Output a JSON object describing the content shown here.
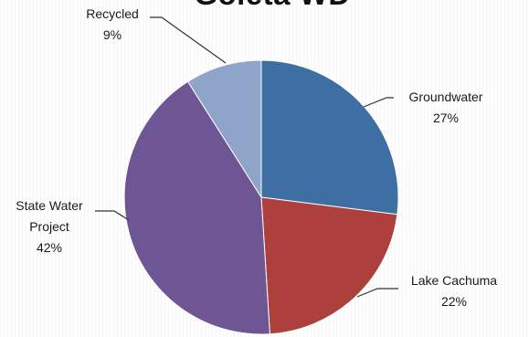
{
  "chart_data": {
    "type": "pie",
    "title": "Goleta WD",
    "slices": [
      {
        "label": "Groundwater",
        "value": 27,
        "value_label": "27%",
        "color": "#3d6fa3"
      },
      {
        "label": "Lake Cachuma",
        "value": 22,
        "value_label": "22%",
        "color": "#ad403d"
      },
      {
        "label": "State Water Project",
        "label_lines": [
          "State Water",
          "Project"
        ],
        "value": 42,
        "value_label": "42%",
        "color": "#6e5594"
      },
      {
        "label": "Recycled",
        "value": 9,
        "value_label": "9%",
        "color": "#8ea5c9"
      }
    ],
    "start_angle_deg": 0,
    "direction": "clockwise",
    "legend": "none"
  }
}
